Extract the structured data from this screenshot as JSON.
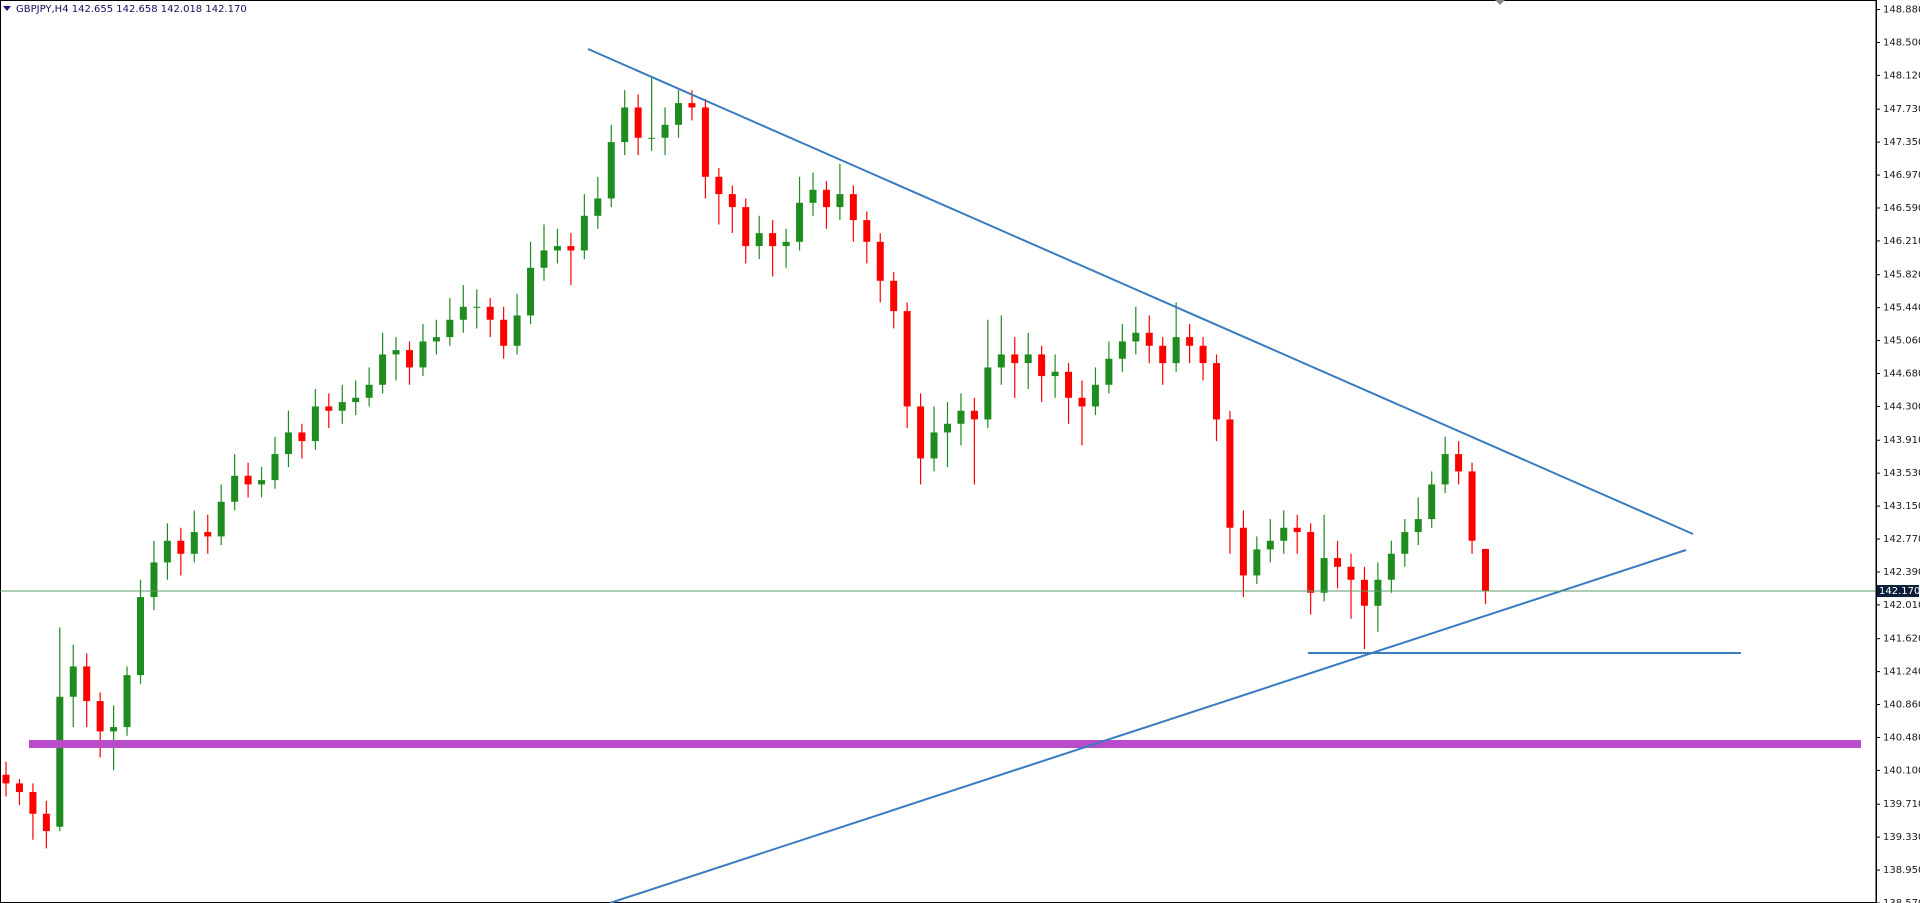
{
  "chart_data": {
    "type": "candlestick",
    "header": "GBPJPY,H4  142.655 142.658 142.018 142.170",
    "up_color": "#1f8c1f",
    "down_color": "#ff0000",
    "ylim": [
      138.57,
      148.99
    ],
    "yticks": [
      {
        "value": 148.88,
        "label": "148.880"
      },
      {
        "value": 148.5,
        "label": "148.500"
      },
      {
        "value": 148.12,
        "label": "148.120"
      },
      {
        "value": 147.73,
        "label": "147.730"
      },
      {
        "value": 147.35,
        "label": "147.350"
      },
      {
        "value": 146.97,
        "label": "146.970"
      },
      {
        "value": 146.59,
        "label": "146.590"
      },
      {
        "value": 146.21,
        "label": "146.210"
      },
      {
        "value": 145.82,
        "label": "145.820"
      },
      {
        "value": 145.44,
        "label": "145.440"
      },
      {
        "value": 145.06,
        "label": "145.060"
      },
      {
        "value": 144.68,
        "label": "144.680"
      },
      {
        "value": 144.3,
        "label": "144.300"
      },
      {
        "value": 143.91,
        "label": "143.910"
      },
      {
        "value": 143.53,
        "label": "143.530"
      },
      {
        "value": 143.15,
        "label": "143.150"
      },
      {
        "value": 142.77,
        "label": "142.770"
      },
      {
        "value": 142.39,
        "label": "142.390"
      },
      {
        "value": 142.01,
        "label": "142.010"
      },
      {
        "value": 141.62,
        "label": "141.620"
      },
      {
        "value": 141.24,
        "label": "141.240"
      },
      {
        "value": 140.86,
        "label": "140.860"
      },
      {
        "value": 140.48,
        "label": "140.480"
      },
      {
        "value": 140.1,
        "label": "140.100"
      },
      {
        "value": 139.71,
        "label": "139.710"
      },
      {
        "value": 139.33,
        "label": "139.330"
      },
      {
        "value": 138.95,
        "label": "138.950"
      },
      {
        "value": 138.57,
        "label": "138.570"
      }
    ],
    "last_price": {
      "value": 142.17,
      "label": "142.170"
    },
    "candles": [
      [
        140.05,
        140.2,
        139.8,
        139.95
      ],
      [
        139.95,
        140.0,
        139.7,
        139.85
      ],
      [
        139.85,
        139.95,
        139.3,
        139.6
      ],
      [
        139.6,
        139.75,
        139.2,
        139.4
      ],
      [
        139.45,
        141.75,
        139.4,
        140.95
      ],
      [
        140.95,
        141.55,
        140.6,
        141.3
      ],
      [
        141.3,
        141.45,
        140.6,
        140.9
      ],
      [
        140.9,
        141.0,
        140.25,
        140.55
      ],
      [
        140.55,
        140.85,
        140.1,
        140.6
      ],
      [
        140.6,
        141.3,
        140.5,
        141.2
      ],
      [
        141.2,
        142.3,
        141.1,
        142.1
      ],
      [
        142.1,
        142.75,
        141.95,
        142.5
      ],
      [
        142.5,
        142.95,
        142.3,
        142.75
      ],
      [
        142.75,
        142.9,
        142.35,
        142.6
      ],
      [
        142.6,
        143.1,
        142.5,
        142.85
      ],
      [
        142.85,
        143.05,
        142.6,
        142.8
      ],
      [
        142.8,
        143.4,
        142.7,
        143.2
      ],
      [
        143.2,
        143.75,
        143.1,
        143.5
      ],
      [
        143.5,
        143.65,
        143.25,
        143.4
      ],
      [
        143.4,
        143.6,
        143.25,
        143.45
      ],
      [
        143.45,
        143.95,
        143.35,
        143.75
      ],
      [
        143.75,
        144.25,
        143.6,
        144.0
      ],
      [
        144.0,
        144.1,
        143.7,
        143.9
      ],
      [
        143.9,
        144.5,
        143.8,
        144.3
      ],
      [
        144.3,
        144.45,
        144.05,
        144.25
      ],
      [
        144.25,
        144.55,
        144.1,
        144.35
      ],
      [
        144.35,
        144.6,
        144.2,
        144.4
      ],
      [
        144.4,
        144.75,
        144.3,
        144.55
      ],
      [
        144.55,
        145.15,
        144.45,
        144.9
      ],
      [
        144.9,
        145.1,
        144.6,
        144.95
      ],
      [
        144.95,
        145.05,
        144.55,
        144.75
      ],
      [
        144.75,
        145.25,
        144.65,
        145.05
      ],
      [
        145.05,
        145.3,
        144.9,
        145.1
      ],
      [
        145.1,
        145.55,
        145.0,
        145.3
      ],
      [
        145.3,
        145.7,
        145.15,
        145.45
      ],
      [
        145.45,
        145.65,
        145.2,
        145.45
      ],
      [
        145.45,
        145.55,
        145.1,
        145.3
      ],
      [
        145.3,
        145.45,
        144.85,
        145.0
      ],
      [
        145.0,
        145.6,
        144.9,
        145.35
      ],
      [
        145.35,
        146.2,
        145.25,
        145.9
      ],
      [
        145.9,
        146.4,
        145.75,
        146.1
      ],
      [
        146.1,
        146.35,
        145.95,
        146.15
      ],
      [
        146.15,
        146.3,
        145.7,
        146.1
      ],
      [
        146.1,
        146.75,
        146.0,
        146.5
      ],
      [
        146.5,
        146.95,
        146.35,
        146.7
      ],
      [
        146.7,
        147.55,
        146.6,
        147.35
      ],
      [
        147.35,
        147.95,
        147.2,
        147.75
      ],
      [
        147.75,
        147.9,
        147.2,
        147.4
      ],
      [
        147.4,
        148.1,
        147.25,
        147.4
      ],
      [
        147.4,
        147.75,
        147.2,
        147.55
      ],
      [
        147.55,
        147.95,
        147.4,
        147.8
      ],
      [
        147.8,
        147.95,
        147.6,
        147.75
      ],
      [
        147.75,
        147.85,
        146.7,
        146.95
      ],
      [
        146.95,
        147.05,
        146.4,
        146.75
      ],
      [
        146.75,
        146.85,
        146.3,
        146.6
      ],
      [
        146.6,
        146.7,
        145.95,
        146.15
      ],
      [
        146.15,
        146.5,
        146.0,
        146.3
      ],
      [
        146.3,
        146.45,
        145.8,
        146.15
      ],
      [
        146.15,
        146.35,
        145.9,
        146.2
      ],
      [
        146.2,
        146.95,
        146.1,
        146.65
      ],
      [
        146.65,
        147.0,
        146.5,
        146.8
      ],
      [
        146.8,
        146.9,
        146.35,
        146.6
      ],
      [
        146.6,
        147.1,
        146.45,
        146.75
      ],
      [
        146.75,
        146.85,
        146.2,
        146.45
      ],
      [
        146.45,
        146.55,
        145.95,
        146.2
      ],
      [
        146.2,
        146.3,
        145.5,
        145.75
      ],
      [
        145.75,
        145.85,
        145.2,
        145.4
      ],
      [
        145.4,
        145.5,
        144.05,
        144.3
      ],
      [
        144.3,
        144.45,
        143.4,
        143.7
      ],
      [
        143.7,
        144.3,
        143.55,
        144.0
      ],
      [
        144.0,
        144.35,
        143.6,
        144.1
      ],
      [
        144.1,
        144.45,
        143.85,
        144.25
      ],
      [
        144.25,
        144.4,
        143.4,
        144.15
      ],
      [
        144.15,
        145.3,
        144.05,
        144.75
      ],
      [
        144.75,
        145.35,
        144.55,
        144.9
      ],
      [
        144.9,
        145.1,
        144.4,
        144.8
      ],
      [
        144.8,
        145.15,
        144.5,
        144.9
      ],
      [
        144.9,
        145.0,
        144.35,
        144.65
      ],
      [
        144.65,
        144.9,
        144.4,
        144.7
      ],
      [
        144.7,
        144.8,
        144.1,
        144.4
      ],
      [
        144.4,
        144.6,
        143.85,
        144.3
      ],
      [
        144.3,
        144.75,
        144.2,
        144.55
      ],
      [
        144.55,
        145.05,
        144.45,
        144.85
      ],
      [
        144.85,
        145.25,
        144.7,
        145.05
      ],
      [
        145.05,
        145.45,
        144.9,
        145.15
      ],
      [
        145.15,
        145.35,
        144.8,
        145.0
      ],
      [
        145.0,
        145.1,
        144.55,
        144.8
      ],
      [
        144.8,
        145.5,
        144.7,
        145.1
      ],
      [
        145.1,
        145.25,
        144.8,
        145.0
      ],
      [
        145.0,
        145.1,
        144.6,
        144.8
      ],
      [
        144.8,
        144.9,
        143.9,
        144.15
      ],
      [
        144.15,
        144.25,
        142.6,
        142.9
      ],
      [
        142.9,
        143.1,
        142.1,
        142.35
      ],
      [
        142.35,
        142.8,
        142.25,
        142.65
      ],
      [
        142.65,
        143.0,
        142.5,
        142.75
      ],
      [
        142.75,
        143.1,
        142.6,
        142.9
      ],
      [
        142.9,
        143.05,
        142.6,
        142.85
      ],
      [
        142.85,
        142.95,
        141.9,
        142.15
      ],
      [
        142.15,
        143.05,
        142.05,
        142.55
      ],
      [
        142.55,
        142.75,
        142.2,
        142.45
      ],
      [
        142.45,
        142.6,
        141.85,
        142.3
      ],
      [
        142.3,
        142.45,
        141.5,
        142.0
      ],
      [
        142.0,
        142.5,
        141.7,
        142.3
      ],
      [
        142.3,
        142.75,
        142.15,
        142.6
      ],
      [
        142.6,
        143.0,
        142.45,
        142.85
      ],
      [
        142.85,
        143.25,
        142.7,
        143.0
      ],
      [
        143.0,
        143.55,
        142.9,
        143.4
      ],
      [
        143.4,
        143.95,
        143.3,
        143.75
      ],
      [
        143.75,
        143.9,
        143.4,
        143.55
      ],
      [
        143.55,
        143.65,
        142.6,
        142.75
      ],
      [
        142.655,
        142.658,
        142.018,
        142.17
      ]
    ]
  }
}
